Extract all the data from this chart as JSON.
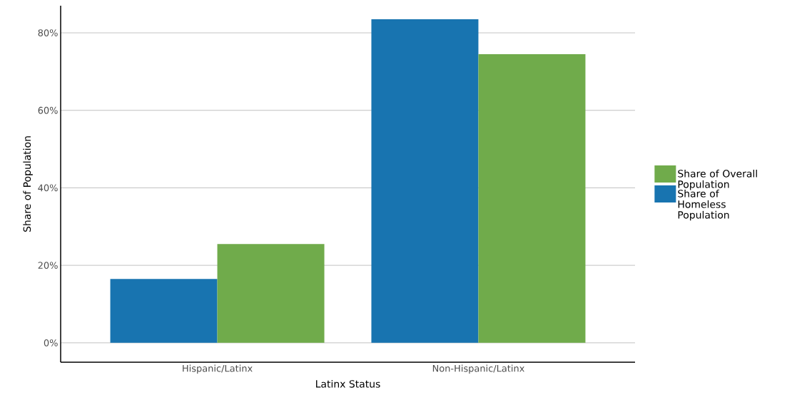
{
  "chart_data": {
    "type": "bar",
    "xlabel": "Latinx Status",
    "ylabel": "Share of Population",
    "categories": [
      "Hispanic/Latinx",
      "Non-Hispanic/Latinx"
    ],
    "series": [
      {
        "name": "Share of Homeless Population",
        "color": "#1874b0",
        "values": [
          16.5,
          83.5
        ]
      },
      {
        "name": "Share of Overall Population",
        "color": "#70ab4b",
        "values": [
          25.5,
          74.5
        ]
      }
    ],
    "ylim": [
      -5,
      87
    ],
    "yticks": [
      {
        "value": 0,
        "label": "0%"
      },
      {
        "value": 20,
        "label": "20%"
      },
      {
        "value": 40,
        "label": "40%"
      },
      {
        "value": 60,
        "label": "60%"
      },
      {
        "value": 80,
        "label": "80%"
      }
    ],
    "grid": "y",
    "legend": "right"
  }
}
